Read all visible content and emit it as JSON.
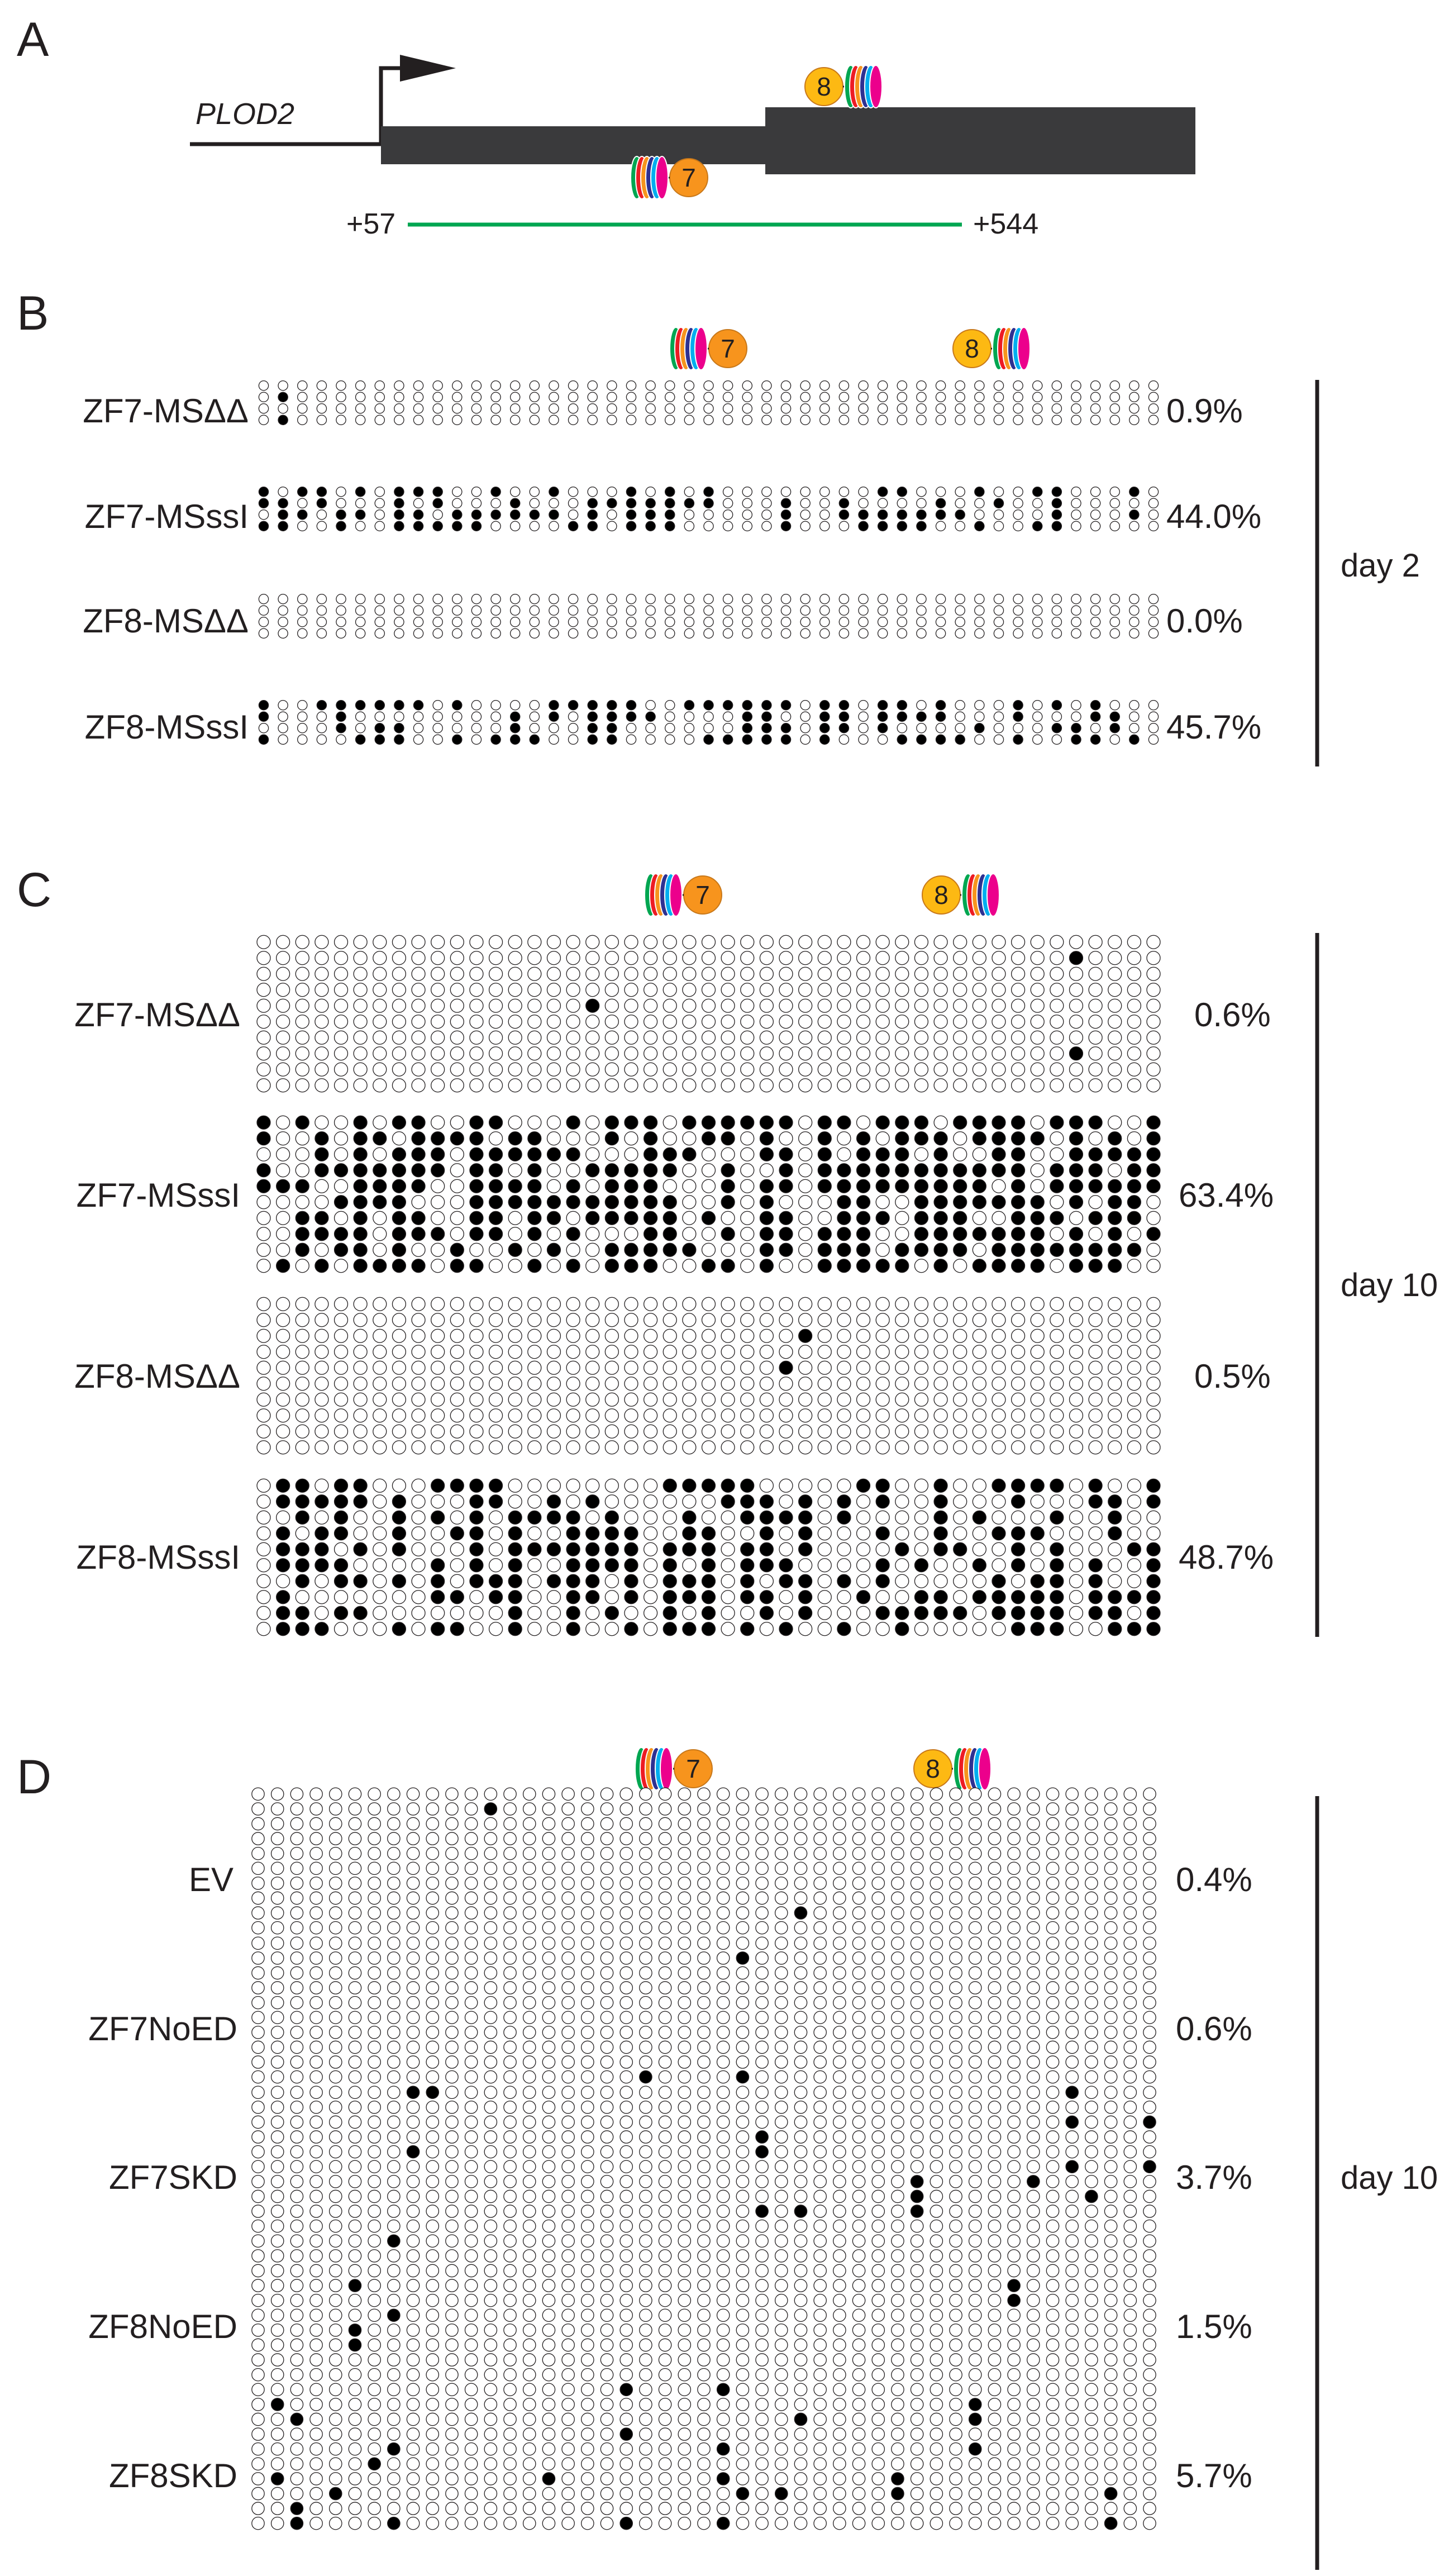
{
  "panel_a": {
    "letter": "A",
    "gene": "PLOD2",
    "start_coord": "+57",
    "end_coord": "+544",
    "zf_labels": [
      "8",
      "7"
    ]
  },
  "panels": [
    {
      "key": "b",
      "letter": "B",
      "day": "day 2",
      "zf_labels": [
        "7",
        "8"
      ],
      "rows": [
        {
          "label": "ZF7-MSΔΔ",
          "percent": "0.9%",
          "reads": 4,
          "methylation_fraction": 0.009
        },
        {
          "label": "ZF7-MSssI",
          "percent": "44.0%",
          "reads": 4,
          "methylation_fraction": 0.44
        },
        {
          "label": "ZF8-MSΔΔ",
          "percent": "0.0%",
          "reads": 4,
          "methylation_fraction": 0.0
        },
        {
          "label": "ZF8-MSssI",
          "percent": "45.7%",
          "reads": 4,
          "methylation_fraction": 0.457
        }
      ]
    },
    {
      "key": "c",
      "letter": "C",
      "day": "day 10",
      "zf_labels": [
        "7",
        "8"
      ],
      "rows": [
        {
          "label": "ZF7-MSΔΔ",
          "percent": "0.6%",
          "reads": 10,
          "methylation_fraction": 0.006
        },
        {
          "label": "ZF7-MSssI",
          "percent": "63.4%",
          "reads": 10,
          "methylation_fraction": 0.634
        },
        {
          "label": "ZF8-MSΔΔ",
          "percent": "0.5%",
          "reads": 10,
          "methylation_fraction": 0.005
        },
        {
          "label": "ZF8-MSssI",
          "percent": "48.7%",
          "reads": 10,
          "methylation_fraction": 0.487
        }
      ]
    },
    {
      "key": "d",
      "letter": "D",
      "day": "day 10",
      "zf_labels": [
        "7",
        "8"
      ],
      "rows": [
        {
          "label": "EV",
          "percent": "0.4%",
          "reads": 10,
          "methylation_fraction": 0.004
        },
        {
          "label": "ZF7NoED",
          "percent": "0.6%",
          "reads": 10,
          "methylation_fraction": 0.006
        },
        {
          "label": "ZF7SKD",
          "percent": "3.7%",
          "reads": 10,
          "methylation_fraction": 0.037
        },
        {
          "label": "ZF8NoED",
          "percent": "1.5%",
          "reads": 10,
          "methylation_fraction": 0.015
        },
        {
          "label": "ZF8SKD",
          "percent": "5.7%",
          "reads": 10,
          "methylation_fraction": 0.057
        }
      ]
    }
  ],
  "colors": {
    "ink": "#231f20",
    "gene_body": "#3a3a3c",
    "amplicon": "#00a651",
    "methylated": "#000000",
    "unmethylated": "#ffffff",
    "zf7_ball": "#f7941d",
    "zf8_ball": "#fdb913",
    "finger_colors": [
      "#00a651",
      "#ed1c24",
      "#f7941d",
      "#2e3192",
      "#00aeef",
      "#ec008c"
    ]
  },
  "cpg_sites_per_read": 47
}
